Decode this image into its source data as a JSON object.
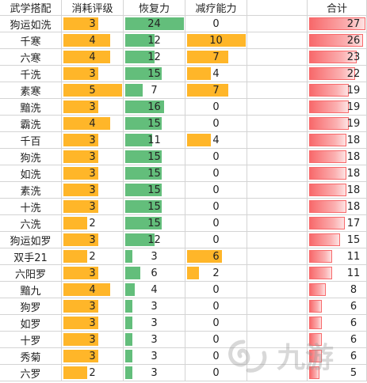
{
  "headers": [
    "武学搭配",
    "消耗评级",
    "恢复力",
    "减疗能力",
    "合计"
  ],
  "scale": {
    "cost_max": 5,
    "recovery_max": 24,
    "heal_reduce_max": 10,
    "total_max": 27
  },
  "rows": [
    {
      "name": "狗运如洗",
      "cost": 3,
      "recovery": 24,
      "heal_reduce": 0,
      "total": 27
    },
    {
      "name": "千寒",
      "cost": 4,
      "recovery": 12,
      "heal_reduce": 10,
      "total": 26
    },
    {
      "name": "六寒",
      "cost": 4,
      "recovery": 12,
      "heal_reduce": 7,
      "total": 23
    },
    {
      "name": "千洗",
      "cost": 3,
      "recovery": 15,
      "heal_reduce": 4,
      "total": 22
    },
    {
      "name": "素寒",
      "cost": 5,
      "recovery": 7,
      "heal_reduce": 7,
      "total": 19
    },
    {
      "name": "黯洗",
      "cost": 3,
      "recovery": 16,
      "heal_reduce": 0,
      "total": 19
    },
    {
      "name": "霸洗",
      "cost": 4,
      "recovery": 15,
      "heal_reduce": 0,
      "total": 19
    },
    {
      "name": "千百",
      "cost": 3,
      "recovery": 11,
      "heal_reduce": 4,
      "total": 18
    },
    {
      "name": "狗洗",
      "cost": 3,
      "recovery": 15,
      "heal_reduce": 0,
      "total": 18
    },
    {
      "name": "如洗",
      "cost": 3,
      "recovery": 15,
      "heal_reduce": 0,
      "total": 18
    },
    {
      "name": "素洗",
      "cost": 3,
      "recovery": 15,
      "heal_reduce": 0,
      "total": 18
    },
    {
      "name": "十洗",
      "cost": 3,
      "recovery": 15,
      "heal_reduce": 0,
      "total": 18
    },
    {
      "name": "六洗",
      "cost": 2,
      "recovery": 15,
      "heal_reduce": 0,
      "total": 17
    },
    {
      "name": "狗运如罗",
      "cost": 3,
      "recovery": 12,
      "heal_reduce": 0,
      "total": 15
    },
    {
      "name": "双手21",
      "cost": 2,
      "recovery": 3,
      "heal_reduce": 6,
      "total": 11
    },
    {
      "name": "六阳罗",
      "cost": 3,
      "recovery": 6,
      "heal_reduce": 2,
      "total": 11
    },
    {
      "name": "黯九",
      "cost": 4,
      "recovery": 4,
      "heal_reduce": 0,
      "total": 8
    },
    {
      "name": "狗罗",
      "cost": 3,
      "recovery": 3,
      "heal_reduce": 0,
      "total": 6
    },
    {
      "name": "如罗",
      "cost": 3,
      "recovery": 3,
      "heal_reduce": 0,
      "total": 6
    },
    {
      "name": "十罗",
      "cost": 3,
      "recovery": 3,
      "heal_reduce": 0,
      "total": 6
    },
    {
      "name": "秀菊",
      "cost": 3,
      "recovery": 3,
      "heal_reduce": 0,
      "total": 6
    },
    {
      "name": "六罗",
      "cost": 2,
      "recovery": 3,
      "heal_reduce": 0,
      "total": 5
    }
  ],
  "colors": {
    "cost_bar": "#ffb629",
    "recovery_bar": "#63be7b",
    "heal_reduce_bar": "#ffb629",
    "total_bar": "#f8696b"
  },
  "watermark": {
    "brand_text": "九游",
    "logo_icon": "jiuyou-logo-icon"
  }
}
